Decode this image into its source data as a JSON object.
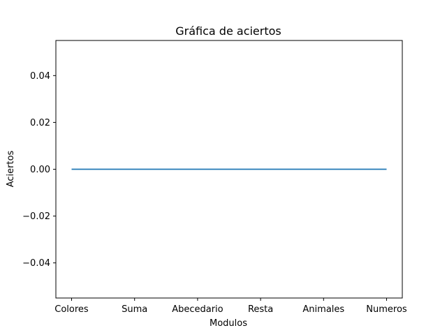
{
  "chart_data": {
    "type": "line",
    "title": "Gráfica de aciertos",
    "xlabel": "Modulos",
    "ylabel": "Aciertos",
    "categories": [
      "Colores",
      "Suma",
      "Abecedario",
      "Resta",
      "Animales",
      "Numeros"
    ],
    "series": [
      {
        "values": [
          0,
          0,
          0,
          0,
          0,
          0
        ],
        "color": "#1f77b4"
      }
    ],
    "ylim": [
      -0.055,
      0.055
    ],
    "yticks": [
      -0.04,
      -0.02,
      0.0,
      0.02,
      0.04
    ],
    "ytick_labels": [
      "−0.04",
      "−0.02",
      "0.00",
      "0.02",
      "0.04"
    ],
    "grid": false,
    "legend": false
  }
}
